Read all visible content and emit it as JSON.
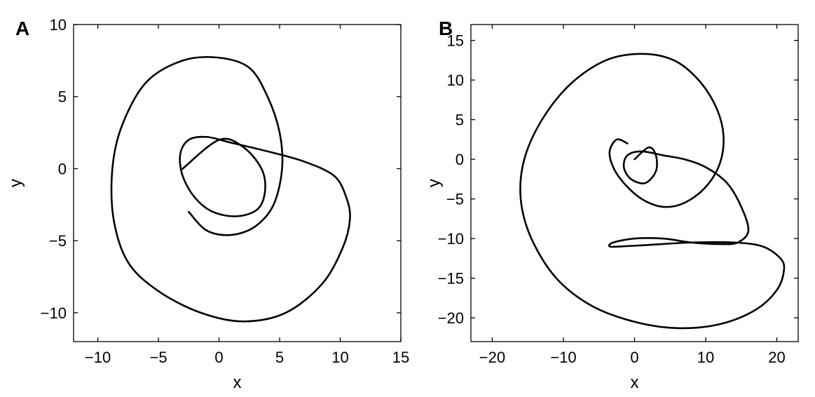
{
  "chart_data": [
    {
      "type": "line",
      "panel_label": "A",
      "xlabel": "x",
      "ylabel": "y",
      "xlim": [
        -12,
        15
      ],
      "ylim": [
        -12,
        10
      ],
      "xticks": [
        -10,
        -5,
        0,
        5,
        10,
        15
      ],
      "yticks": [
        -10,
        -5,
        0,
        5,
        10
      ],
      "xtick_labels": [
        "−10",
        "−5",
        "0",
        "5",
        "10",
        "15"
      ],
      "ytick_labels": [
        "−10",
        "−5",
        "0",
        "5",
        "10"
      ],
      "grid": false,
      "line_color": "#000000",
      "series": [
        {
          "x": [
            -3,
            0,
            2,
            3.5,
            3.8,
            3.2,
            1.5,
            -0.5,
            -2,
            -3,
            -3.2,
            -2.5,
            -1,
            1,
            4,
            7,
            9.5,
            10.5,
            10.8,
            10.2,
            8.5,
            5.5,
            2,
            -1.5,
            -5,
            -7.5,
            -8.7,
            -8.8,
            -8,
            -6,
            -3,
            0,
            2.5,
            4,
            5,
            5.2,
            4.5,
            3,
            1,
            -1,
            -2.5
          ],
          "y": [
            0,
            2,
            1.5,
            0,
            -1.5,
            -2.8,
            -3.3,
            -3,
            -2,
            -0.5,
            1,
            2,
            2.2,
            1.8,
            1.2,
            0.5,
            -0.5,
            -2,
            -3.5,
            -5.5,
            -8,
            -10,
            -10.6,
            -10,
            -8.5,
            -6.5,
            -3.5,
            0,
            3,
            6,
            7.5,
            7.7,
            7,
            5,
            2.5,
            0,
            -2.5,
            -4,
            -4.6,
            -4.3,
            -3
          ]
        }
      ]
    },
    {
      "type": "line",
      "panel_label": "B",
      "xlabel": "x",
      "ylabel": "y",
      "xlim": [
        -23,
        23
      ],
      "ylim": [
        -23,
        17
      ],
      "xticks": [
        -20,
        -10,
        0,
        10,
        20
      ],
      "yticks": [
        -20,
        -15,
        -10,
        -5,
        0,
        5,
        10,
        15
      ],
      "xtick_labels": [
        "−20",
        "−10",
        "0",
        "10",
        "20"
      ],
      "ytick_labels": [
        "−20",
        "−15",
        "−10",
        "−5",
        "0",
        "5",
        "10",
        "15"
      ],
      "grid": false,
      "line_color": "#000000",
      "series": [
        {
          "x": [
            0,
            2,
            3,
            3,
            1.5,
            -0.5,
            -1.5,
            -1,
            1,
            4,
            7,
            10,
            13,
            15,
            16,
            14.5,
            12,
            8,
            4,
            0,
            -3,
            -3.5,
            -2,
            2,
            8,
            14,
            18,
            20.5,
            21,
            20,
            17,
            12,
            6,
            0,
            -6,
            -11,
            -14.5,
            -16,
            -15.5,
            -13,
            -9,
            -4,
            1,
            5.5,
            9,
            11.5,
            12.5,
            12,
            10,
            7,
            4,
            1,
            -1.5,
            -3,
            -3.5,
            -2.5,
            -1
          ],
          "y": [
            0,
            1.5,
            0.5,
            -1.5,
            -3,
            -2.5,
            -1,
            0.5,
            1,
            0.5,
            0,
            -1,
            -3,
            -6,
            -9,
            -10.5,
            -10.7,
            -10.5,
            -10,
            -10,
            -10.5,
            -11,
            -11,
            -10.8,
            -10.5,
            -10.5,
            -11,
            -12.5,
            -14,
            -16.5,
            -19,
            -20.8,
            -21.3,
            -20.5,
            -18.5,
            -15,
            -10,
            -5,
            0,
            5,
            9.5,
            12.5,
            13.3,
            12.5,
            10,
            6.5,
            3,
            -0.5,
            -3.5,
            -5.5,
            -6,
            -5,
            -3,
            -1,
            1,
            2.5,
            2
          ]
        }
      ]
    }
  ]
}
